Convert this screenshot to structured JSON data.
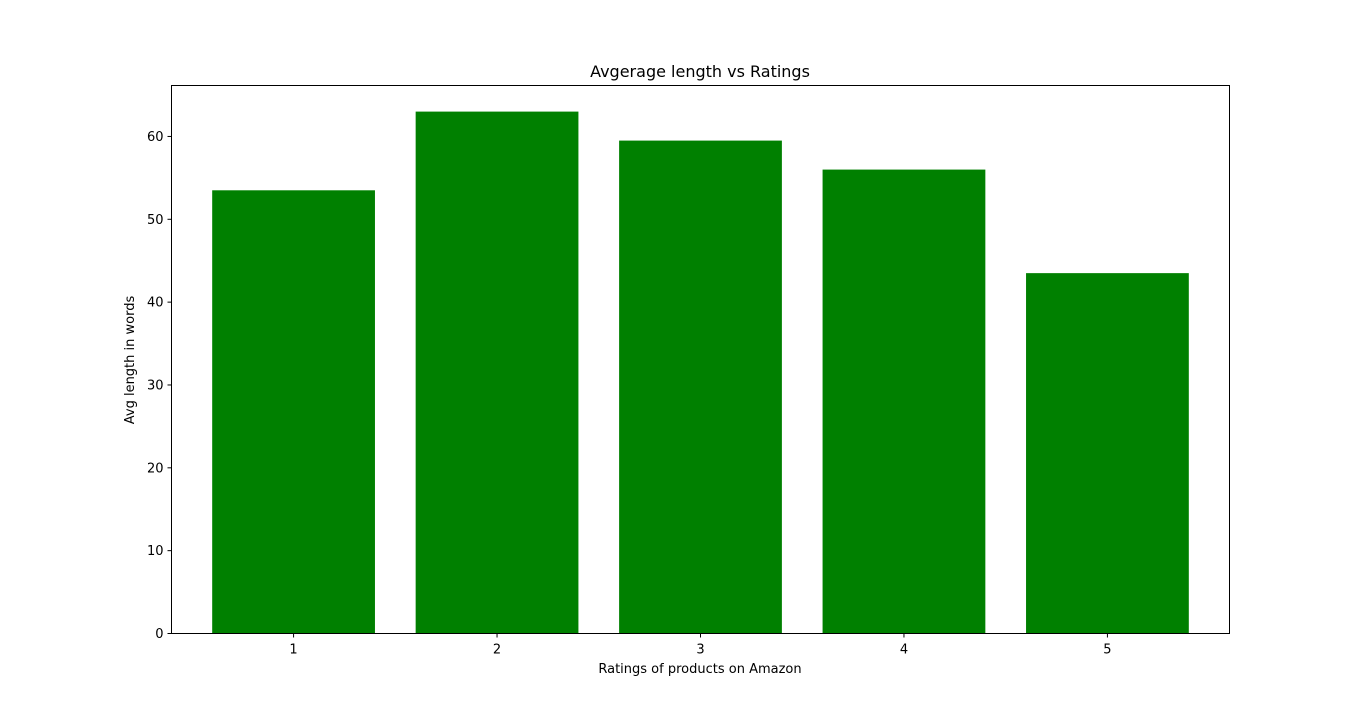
{
  "chart_data": {
    "type": "bar",
    "title": "Avgerage length vs Ratings",
    "xlabel": "Ratings of products on Amazon",
    "ylabel": "Avg length in words",
    "categories": [
      "1",
      "2",
      "3",
      "4",
      "5"
    ],
    "values": [
      53.5,
      63.0,
      59.5,
      56.0,
      43.5
    ],
    "ylim": [
      0,
      66.15
    ],
    "yticks": [
      0,
      10,
      20,
      30,
      40,
      50,
      60
    ],
    "bar_color": "#008000",
    "grid": false,
    "legend": "none"
  }
}
